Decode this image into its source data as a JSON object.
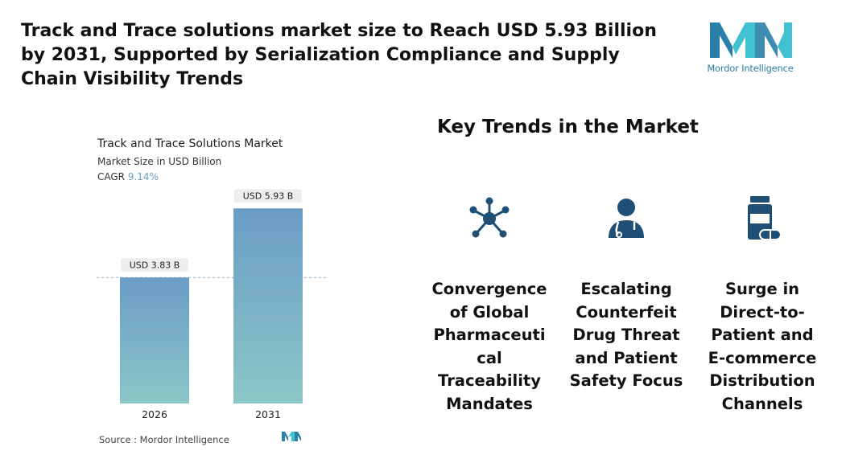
{
  "headline": "Track and Trace solutions market size to Reach USD 5.93 Billion by 2031, Supported by Serialization Compliance and Supply Chain Visibility Trends",
  "brand": {
    "name": "Mordor Intelligence",
    "color": "#2a7fa8",
    "accent": "#41c1d0"
  },
  "chart_data": {
    "type": "bar",
    "title": "Track and Trace Solutions Market",
    "subtitle": "Market Size in USD Billion",
    "cagr_label": "CAGR",
    "cagr_value": "9.14%",
    "categories": [
      "2026",
      "2031"
    ],
    "values": [
      3.83,
      5.93
    ],
    "data_labels": [
      "USD 3.83 B",
      "USD 5.93 B"
    ],
    "ylim": [
      0,
      6.4
    ],
    "reference_line_value": 3.83,
    "grid": false,
    "bar_gradient": [
      "#6a9cc6",
      "#8cc6c6"
    ]
  },
  "source": "Source :  Mordor Intelligence",
  "trends": {
    "title": "Key Trends in the Market",
    "items": [
      {
        "icon": "network-hub-icon",
        "text": "Convergence of Global Pharmaceuti cal Traceability Mandates"
      },
      {
        "icon": "doctor-icon",
        "text": "Escalating Counterfeit Drug Threat and Patient Safety Focus"
      },
      {
        "icon": "medicine-bottle-icon",
        "text": "Surge in Direct-to-Patient and E-commerce Distribution Channels"
      }
    ]
  }
}
